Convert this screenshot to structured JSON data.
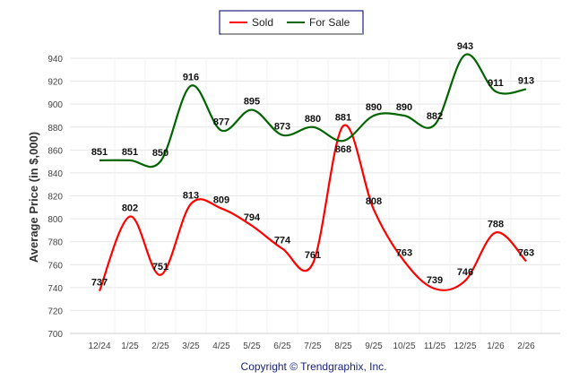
{
  "chart_data": {
    "type": "line",
    "title": "",
    "xlabel": "",
    "ylabel": "Average Price (in $,000)",
    "ylim": [
      700,
      940
    ],
    "yticks": [
      700,
      720,
      740,
      760,
      780,
      800,
      820,
      840,
      860,
      880,
      900,
      920,
      940
    ],
    "categories": [
      "12/24",
      "1/25",
      "2/25",
      "3/25",
      "4/25",
      "5/25",
      "6/25",
      "7/25",
      "8/25",
      "9/25",
      "10/25",
      "11/25",
      "12/25",
      "1/26",
      "2/26"
    ],
    "series": [
      {
        "name": "Sold",
        "color": "#ff0000",
        "values": [
          737,
          802,
          751,
          813,
          809,
          794,
          774,
          761,
          881,
          808,
          763,
          739,
          746,
          788,
          763
        ]
      },
      {
        "name": "For Sale",
        "color": "#006400",
        "values": [
          851,
          851,
          850,
          916,
          877,
          895,
          873,
          880,
          868,
          890,
          890,
          882,
          943,
          911,
          913
        ]
      }
    ],
    "legend": "top-center",
    "grid": true
  },
  "footer": "Copyright © Trendgraphix, Inc."
}
